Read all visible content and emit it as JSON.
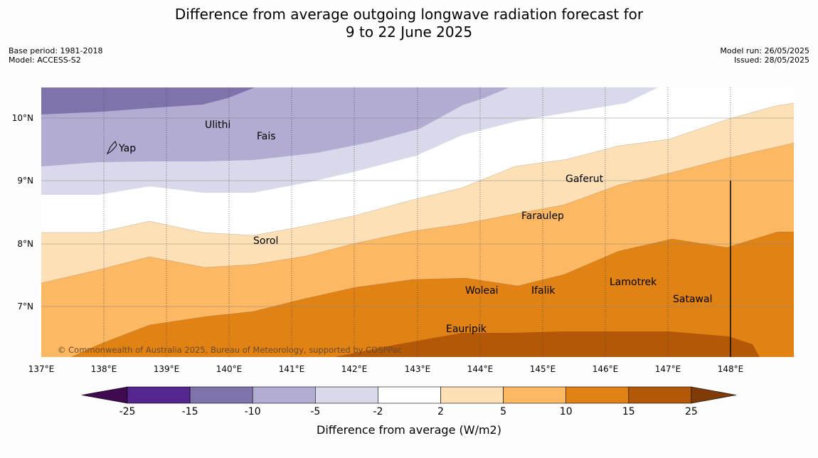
{
  "header": {
    "title_line1": "Difference from average outgoing longwave radiation forecast for",
    "title_line2": "9 to 22 June 2025",
    "base_period": "Base period: 1981-2018",
    "model": "Model: ACCESS-S2",
    "model_run": "Model run: 26/05/2025",
    "issued": "Issued: 28/05/2025"
  },
  "map": {
    "lon_labels": [
      "137°E",
      "138°E",
      "139°E",
      "140°E",
      "141°E",
      "142°E",
      "143°E",
      "144°E",
      "145°E",
      "146°E",
      "147°E",
      "148°E"
    ],
    "lat_labels": [
      "10°N",
      "9°N",
      "8°N",
      "7°N"
    ],
    "places": [
      {
        "name": "Ulithi"
      },
      {
        "name": "Fais"
      },
      {
        "name": "Yap"
      },
      {
        "name": "Gaferut"
      },
      {
        "name": "Faraulep"
      },
      {
        "name": "Sorol"
      },
      {
        "name": "Lamotrek"
      },
      {
        "name": "Woleai"
      },
      {
        "name": "Ifalik"
      },
      {
        "name": "Satawal"
      },
      {
        "name": "Eauripik"
      }
    ],
    "copyright": "© Commonwealth of Australia 2025, Bureau of Meteorology, supported by COSPPac"
  },
  "colorbar": {
    "labels": [
      "-25",
      "-15",
      "-10",
      "-5",
      "-2",
      "2",
      "5",
      "10",
      "15",
      "25"
    ],
    "title": "Difference from average (W/m2)",
    "colors": {
      "lt_m25": "#3f0a4f",
      "m25_m15": "#54278f",
      "m15_m10": "#8073ac",
      "m10_m5": "#b2abd2",
      "m5_m2": "#d8daeb",
      "m2_2": "#ffffff",
      "2_5": "#fee0b6",
      "5_10": "#fdb863",
      "10_15": "#e08214",
      "15_25": "#b35806",
      "gt_25": "#7f3b08"
    }
  }
}
